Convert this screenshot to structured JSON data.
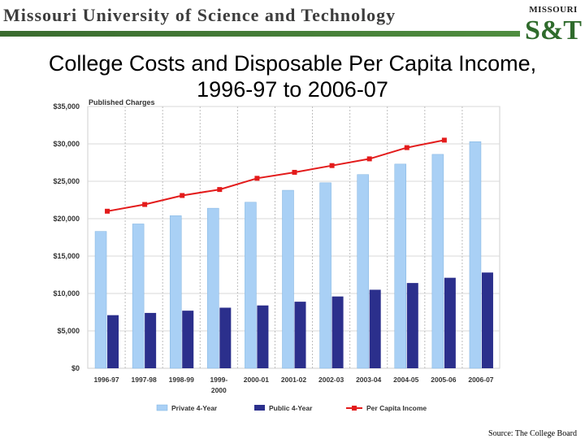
{
  "header": {
    "university": "Missouri University of Science and Technology",
    "logo_top": "MISSOURI",
    "logo_mark": "S&T"
  },
  "slide_title": "College Costs and Disposable Per Capita Income, 1996-97 to 2006-07",
  "source": "Source: The College Board",
  "colors": {
    "private": "#a9d0f5",
    "public": "#2b2f8c",
    "income": "#e31b1b",
    "brand_green": "#3a6b2f"
  },
  "chart_data": {
    "type": "bar",
    "ylabel": "Published Charges",
    "categories": [
      "1996-97",
      "1997-98",
      "1998-99",
      "1999-2000",
      "2000-01",
      "2001-02",
      "2002-03",
      "2003-04",
      "2004-05",
      "2005-06",
      "2006-07"
    ],
    "category_labels": [
      [
        "1996-97"
      ],
      [
        "1997-98"
      ],
      [
        "1998-99"
      ],
      [
        "1999-",
        "2000"
      ],
      [
        "2000-01"
      ],
      [
        "2001-02"
      ],
      [
        "2002-03"
      ],
      [
        "2003-04"
      ],
      [
        "2004-05"
      ],
      [
        "2005-06"
      ],
      [
        "2006-07"
      ]
    ],
    "yticks": [
      "$0",
      "$5,000",
      "$10,000",
      "$15,000",
      "$20,000",
      "$25,000",
      "$30,000",
      "$35,000"
    ],
    "ylim": [
      0,
      35000
    ],
    "series": [
      {
        "name": "Private 4-Year",
        "kind": "bar",
        "values": [
          18300,
          19300,
          20400,
          21400,
          22200,
          23800,
          24800,
          25900,
          27300,
          28600,
          30300
        ]
      },
      {
        "name": "Public 4-Year",
        "kind": "bar",
        "values": [
          7100,
          7400,
          7700,
          8100,
          8400,
          8900,
          9600,
          10500,
          11400,
          12100,
          12800
        ]
      },
      {
        "name": "Per Capita Income",
        "kind": "line",
        "values": [
          21000,
          21900,
          23100,
          23900,
          25400,
          26200,
          27100,
          28000,
          29500,
          30500,
          null
        ]
      }
    ],
    "legend_position": "bottom",
    "grid": true
  }
}
